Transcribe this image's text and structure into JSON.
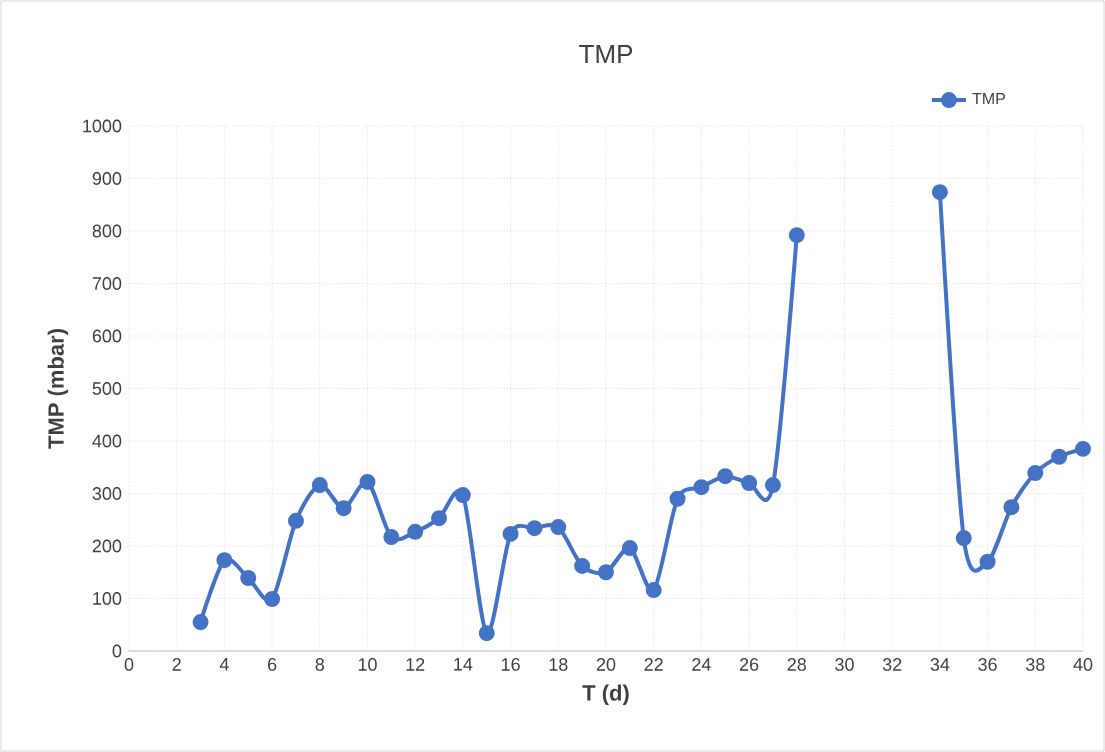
{
  "chart_data": {
    "type": "line",
    "title": "TMP",
    "xlabel": "T (d)",
    "ylabel": "TMP (mbar)",
    "x": [
      3,
      4,
      5,
      6,
      7,
      8,
      9,
      10,
      11,
      12,
      13,
      14,
      15,
      16,
      17,
      18,
      19,
      20,
      21,
      22,
      23,
      24,
      25,
      26,
      27,
      28,
      29,
      30,
      31,
      32,
      33,
      34,
      35,
      36,
      37,
      38,
      39,
      40
    ],
    "series": [
      {
        "name": "TMP",
        "color": "#4472c4",
        "values": [
          55,
          173,
          139,
          99,
          248,
          316,
          272,
          322,
          217,
          227,
          253,
          297,
          34,
          223,
          234,
          236,
          162,
          150,
          196,
          116,
          290,
          312,
          333,
          320,
          316,
          792,
          null,
          null,
          null,
          null,
          null,
          874,
          215,
          170,
          274,
          339,
          370,
          385
        ]
      }
    ],
    "xlim": [
      0,
      40
    ],
    "ylim": [
      0,
      1000
    ],
    "xticks": [
      0,
      2,
      4,
      6,
      8,
      10,
      12,
      14,
      16,
      18,
      20,
      22,
      24,
      26,
      28,
      30,
      32,
      34,
      36,
      38,
      40
    ],
    "yticks": [
      0,
      100,
      200,
      300,
      400,
      500,
      600,
      700,
      800,
      900,
      1000
    ],
    "grid": true,
    "legend": "top right",
    "marker": "circle",
    "line_style": "solid"
  }
}
